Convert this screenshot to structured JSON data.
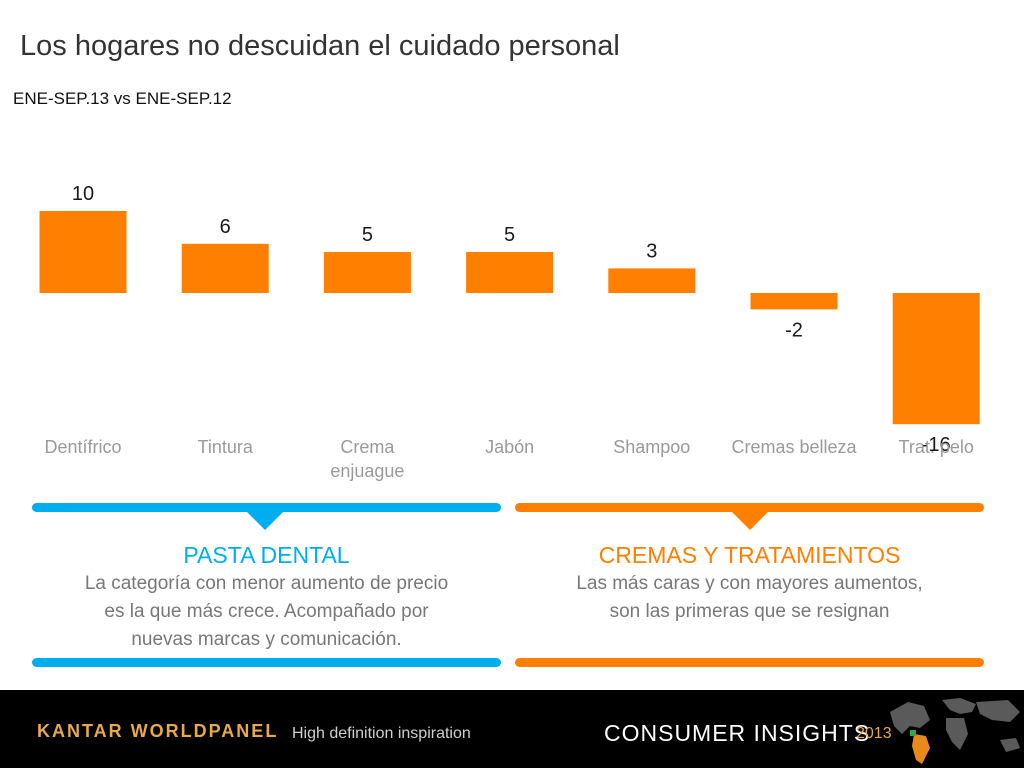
{
  "title": "Los hogares no descuidan el cuidado personal",
  "subtitle": "ENE-SEP.13 vs ENE-SEP.12",
  "colors": {
    "bar": "#ff8000",
    "blue": "#00aeef",
    "orange": "#ff7f00"
  },
  "chart_data": {
    "type": "bar",
    "title": "Los hogares no descuidan el cuidado personal",
    "subtitle": "ENE-SEP.13 vs ENE-SEP.12",
    "categories": [
      "Dentífrico",
      "Tintura",
      "Crema enjuague",
      "Jabón",
      "Shampoo",
      "Cremas belleza",
      "Trat. pelo"
    ],
    "category_lines": [
      [
        "Dentífrico"
      ],
      [
        "Tintura"
      ],
      [
        "Crema",
        "enjuague"
      ],
      [
        "Jabón"
      ],
      [
        "Shampoo"
      ],
      [
        "Cremas belleza"
      ],
      [
        "Trat. pelo"
      ]
    ],
    "values": [
      10,
      6,
      5,
      5,
      3,
      -2,
      -16
    ],
    "value_labels": [
      "10",
      "6",
      "5",
      "5",
      "3",
      "-2",
      "-16"
    ],
    "xlabel": "",
    "ylabel": "",
    "ylim": [
      -16,
      10
    ],
    "grid": false
  },
  "panels": {
    "left": {
      "title": "PASTA DENTAL",
      "lines": [
        "La categoría con menor aumento de precio",
        "es la que más crece. Acompañado por",
        "nuevas marcas y comunicación."
      ]
    },
    "right": {
      "title": "CREMAS Y TRATAMIENTOS",
      "lines": [
        "Las más caras y con mayores aumentos,",
        "son las primeras que se resignan"
      ]
    }
  },
  "footer": {
    "brand": "KANTAR WORLDPANEL",
    "tagline": "High definition inspiration",
    "consumer_insights": "CONSUMER INSIGHTS",
    "year": "2013"
  }
}
